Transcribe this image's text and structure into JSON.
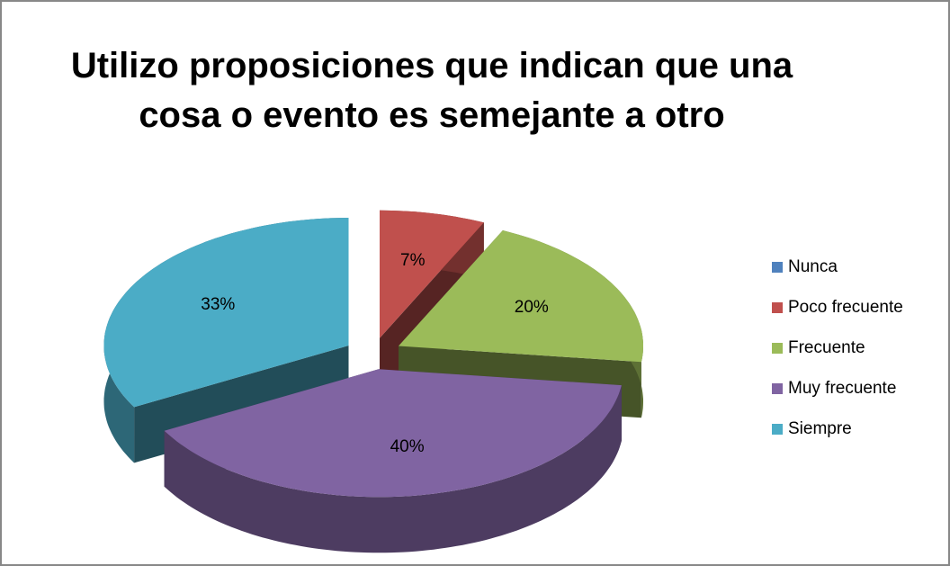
{
  "chart_data": {
    "type": "pie3d",
    "title": "Utilizo proposiciones que indican que una cosa o evento es semejante a otro",
    "categories": [
      "Nunca",
      "Poco frecuente",
      "Frecuente",
      "Muy frecuente",
      "Siempre"
    ],
    "values": [
      0,
      7,
      20,
      40,
      33
    ],
    "value_labels": [
      null,
      "7%",
      "20%",
      "40%",
      "33%"
    ],
    "colors": [
      "#4f81bd",
      "#c0504d",
      "#9bbb59",
      "#8064a2",
      "#4bacc6"
    ],
    "legend": "right"
  }
}
